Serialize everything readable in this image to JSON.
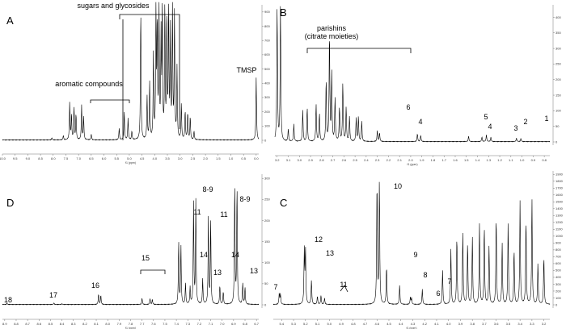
{
  "chart_data": [
    {
      "type": "line",
      "panel": "A",
      "xlabel": "f1 (ppm)",
      "xlim": [
        10.0,
        -0.1
      ],
      "x_ticks": [
        10.0,
        9.5,
        9.0,
        8.5,
        8.0,
        7.5,
        7.0,
        6.5,
        6.0,
        5.5,
        5.0,
        4.5,
        4.0,
        3.5,
        3.0,
        2.5,
        2.0,
        1.5,
        1.0,
        0.5,
        0.0
      ],
      "x_tick_labels": [
        "10.0",
        "9.5",
        "9.0",
        "8.5",
        "8.0",
        "7.5",
        "7.0",
        "6.5",
        "6.0",
        "5.5",
        "5.0",
        "4.5",
        "4.0",
        "3.5",
        "3.0",
        "2.5",
        "2.0",
        "1.5",
        "1.0",
        "0.5",
        "0.0"
      ],
      "ylim": [
        -50,
        950
      ],
      "y_ticks": [
        900,
        800,
        700,
        600,
        500,
        400,
        300,
        200,
        100,
        0
      ],
      "annotations": [
        {
          "text": "aromatic compounds",
          "x": 7.3
        },
        {
          "text": "sugars and glycosides",
          "x": 4.0
        },
        {
          "text": "TMSP",
          "x": 0.0
        }
      ],
      "peaks": [
        {
          "x": 8.05,
          "y": 15
        },
        {
          "x": 7.6,
          "y": 30
        },
        {
          "x": 7.35,
          "y": 260
        },
        {
          "x": 7.28,
          "y": 180
        },
        {
          "x": 7.18,
          "y": 230
        },
        {
          "x": 7.1,
          "y": 180
        },
        {
          "x": 6.88,
          "y": 240
        },
        {
          "x": 6.8,
          "y": 160
        },
        {
          "x": 6.5,
          "y": 40
        },
        {
          "x": 5.4,
          "y": 80
        },
        {
          "x": 5.2,
          "y": 200
        },
        {
          "x": 5.05,
          "y": 150
        },
        {
          "x": 4.9,
          "y": 60
        },
        {
          "x": 4.55,
          "y": 920
        },
        {
          "x": 4.3,
          "y": 300
        },
        {
          "x": 4.2,
          "y": 400
        },
        {
          "x": 4.05,
          "y": 600
        },
        {
          "x": 3.95,
          "y": 920
        },
        {
          "x": 3.9,
          "y": 800
        },
        {
          "x": 3.83,
          "y": 920
        },
        {
          "x": 3.75,
          "y": 700
        },
        {
          "x": 3.7,
          "y": 920
        },
        {
          "x": 3.6,
          "y": 920
        },
        {
          "x": 3.52,
          "y": 860
        },
        {
          "x": 3.45,
          "y": 920
        },
        {
          "x": 3.38,
          "y": 750
        },
        {
          "x": 3.3,
          "y": 920
        },
        {
          "x": 3.22,
          "y": 880
        },
        {
          "x": 3.12,
          "y": 500
        },
        {
          "x": 2.95,
          "y": 250
        },
        {
          "x": 2.8,
          "y": 200
        },
        {
          "x": 2.7,
          "y": 190
        },
        {
          "x": 2.6,
          "y": 160
        },
        {
          "x": 2.45,
          "y": 60
        },
        {
          "x": 0.0,
          "y": 440
        }
      ]
    },
    {
      "type": "line",
      "panel": "B",
      "xlabel": "f1 (ppm)",
      "xlim": [
        3.22,
        0.75
      ],
      "x_ticks": [
        3.2,
        3.1,
        3.0,
        2.9,
        2.8,
        2.7,
        2.6,
        2.5,
        2.4,
        2.3,
        2.2,
        2.1,
        2.0,
        1.9,
        1.8,
        1.7,
        1.6,
        1.5,
        1.4,
        1.3,
        1.2,
        1.1,
        1.0,
        0.9,
        0.8
      ],
      "x_tick_labels": [
        "3.2",
        "3.1",
        "3.0",
        "2.9",
        "2.8",
        "2.7",
        "2.6",
        "2.5",
        "2.4",
        "2.3",
        "2.2",
        "2.1",
        "2.0",
        "1.9",
        "1.8",
        "1.7",
        "1.6",
        "1.5",
        "1.4",
        "1.3",
        "1.2",
        "1.1",
        "1.0",
        "0.9",
        "0.8"
      ],
      "ylim": [
        -30,
        440
      ],
      "y_ticks": [
        400,
        350,
        300,
        250,
        200,
        150,
        100,
        50,
        0
      ],
      "annotations": [
        {
          "text": "parishins",
          "x": 2.72
        },
        {
          "text": "(citrate moieties)",
          "x": 2.72
        },
        {
          "text": "6",
          "x": 2.48
        },
        {
          "text": "4",
          "x": 2.3
        },
        {
          "text": "5",
          "x": 1.93
        },
        {
          "text": "4",
          "x": 1.9
        },
        {
          "text": "3",
          "x": 1.48
        },
        {
          "text": "2",
          "x": 1.3
        },
        {
          "text": "1",
          "x": 1.02
        }
      ],
      "peaks": [
        {
          "x": 3.2,
          "y": 440
        },
        {
          "x": 3.17,
          "y": 440
        },
        {
          "x": 3.1,
          "y": 40
        },
        {
          "x": 3.05,
          "y": 55
        },
        {
          "x": 2.97,
          "y": 100
        },
        {
          "x": 2.93,
          "y": 110
        },
        {
          "x": 2.85,
          "y": 120
        },
        {
          "x": 2.82,
          "y": 90
        },
        {
          "x": 2.76,
          "y": 200
        },
        {
          "x": 2.73,
          "y": 350
        },
        {
          "x": 2.71,
          "y": 220
        },
        {
          "x": 2.68,
          "y": 140
        },
        {
          "x": 2.64,
          "y": 110
        },
        {
          "x": 2.61,
          "y": 190
        },
        {
          "x": 2.58,
          "y": 110
        },
        {
          "x": 2.55,
          "y": 80
        },
        {
          "x": 2.49,
          "y": 75
        },
        {
          "x": 2.47,
          "y": 80
        },
        {
          "x": 2.44,
          "y": 65
        },
        {
          "x": 2.3,
          "y": 35
        },
        {
          "x": 2.28,
          "y": 28
        },
        {
          "x": 1.94,
          "y": 25
        },
        {
          "x": 1.91,
          "y": 20
        },
        {
          "x": 1.48,
          "y": 18
        },
        {
          "x": 1.36,
          "y": 15
        },
        {
          "x": 1.32,
          "y": 22
        },
        {
          "x": 1.28,
          "y": 14
        },
        {
          "x": 1.05,
          "y": 12
        },
        {
          "x": 1.01,
          "y": 10
        }
      ]
    },
    {
      "type": "line",
      "panel": "D",
      "xlabel": "f1 (ppm)",
      "xlim": [
        8.92,
        6.68
      ],
      "x_ticks": [
        8.9,
        8.8,
        8.7,
        8.6,
        8.5,
        8.4,
        8.3,
        8.2,
        8.1,
        8.0,
        7.9,
        7.8,
        7.7,
        7.6,
        7.5,
        7.4,
        7.3,
        7.2,
        7.1,
        7.0,
        6.9,
        6.8,
        6.7
      ],
      "x_tick_labels": [
        "8.9",
        "8.8",
        "8.7",
        "8.6",
        "8.5",
        "8.4",
        "8.3",
        "8.2",
        "8.1",
        "8.0",
        "7.9",
        "7.8",
        "7.7",
        "7.6",
        "7.5",
        "7.4",
        "7.3",
        "7.2",
        "7.1",
        "7.0",
        "6.9",
        "6.8",
        "6.7"
      ],
      "ylim": [
        -10,
        310
      ],
      "y_ticks": [
        300,
        250,
        200,
        150,
        100,
        50,
        0
      ],
      "annotations": [
        {
          "text": "18",
          "x": 8.88
        },
        {
          "text": "17",
          "x": 8.47
        },
        {
          "text": "16",
          "x": 8.07
        },
        {
          "text": "15",
          "x": 7.66
        },
        {
          "text": "11",
          "x": 7.37
        },
        {
          "text": "14",
          "x": 7.3
        },
        {
          "text": "8-9",
          "x": 7.24
        },
        {
          "text": "13",
          "x": 7.17
        },
        {
          "text": "11",
          "x": 7.12
        },
        {
          "text": "14",
          "x": 7.03
        },
        {
          "text": "8-9",
          "x": 6.88
        },
        {
          "text": "13",
          "x": 6.83
        }
      ],
      "peaks": [
        {
          "x": 8.88,
          "y": 3
        },
        {
          "x": 8.47,
          "y": 4
        },
        {
          "x": 8.4,
          "y": 2
        },
        {
          "x": 8.08,
          "y": 25
        },
        {
          "x": 8.06,
          "y": 22
        },
        {
          "x": 7.7,
          "y": 15
        },
        {
          "x": 7.63,
          "y": 14
        },
        {
          "x": 7.61,
          "y": 12
        },
        {
          "x": 7.38,
          "y": 150
        },
        {
          "x": 7.36,
          "y": 140
        },
        {
          "x": 7.32,
          "y": 50
        },
        {
          "x": 7.28,
          "y": 40
        },
        {
          "x": 7.25,
          "y": 240
        },
        {
          "x": 7.23,
          "y": 245
        },
        {
          "x": 7.17,
          "y": 60
        },
        {
          "x": 7.12,
          "y": 210
        },
        {
          "x": 7.1,
          "y": 200
        },
        {
          "x": 7.02,
          "y": 45
        },
        {
          "x": 6.99,
          "y": 30
        },
        {
          "x": 6.89,
          "y": 290
        },
        {
          "x": 6.87,
          "y": 280
        },
        {
          "x": 6.82,
          "y": 50
        },
        {
          "x": 6.8,
          "y": 40
        }
      ]
    },
    {
      "type": "line",
      "panel": "C",
      "xlabel": "f1 (ppm)",
      "xlim": [
        5.47,
        3.15
      ],
      "x_ticks": [
        5.4,
        5.3,
        5.2,
        5.1,
        5.0,
        4.9,
        4.8,
        4.7,
        4.6,
        4.5,
        4.4,
        4.3,
        4.2,
        4.1,
        4.0,
        3.9,
        3.8,
        3.7,
        3.6,
        3.5,
        3.4,
        3.3,
        3.2
      ],
      "x_tick_labels": [
        "5.4",
        "5.3",
        "5.2",
        "5.1",
        "5.0",
        "4.9",
        "4.8",
        "4.7",
        "4.6",
        "4.5",
        "4.4",
        "4.3",
        "4.2",
        "4.1",
        "4.0",
        "3.9",
        "3.8",
        "3.7",
        "3.6",
        "3.5",
        "3.4",
        "3.3",
        "3.2"
      ],
      "ylim": [
        -100,
        1950
      ],
      "y_ticks": [
        1900,
        1800,
        1700,
        1600,
        1500,
        1400,
        1300,
        1200,
        1100,
        1000,
        900,
        800,
        700,
        600,
        500,
        400,
        300,
        200,
        100,
        0
      ],
      "annotations": [
        {
          "text": "7",
          "x": 5.42
        },
        {
          "text": "12",
          "x": 5.2
        },
        {
          "text": "13",
          "x": 5.16
        },
        {
          "text": "11",
          "x": 5.07
        },
        {
          "text": "10",
          "x": 4.59
        },
        {
          "text": "9",
          "x": 4.52
        },
        {
          "text": "8",
          "x": 4.41
        },
        {
          "text": "6",
          "x": 4.32
        },
        {
          "text": "7",
          "x": 4.22
        }
      ],
      "peaks": [
        {
          "x": 5.42,
          "y": 160
        },
        {
          "x": 5.41,
          "y": 150
        },
        {
          "x": 5.21,
          "y": 780
        },
        {
          "x": 5.2,
          "y": 800
        },
        {
          "x": 5.15,
          "y": 350
        },
        {
          "x": 5.1,
          "y": 120
        },
        {
          "x": 5.07,
          "y": 130
        },
        {
          "x": 5.04,
          "y": 90
        },
        {
          "x": 4.6,
          "y": 1800
        },
        {
          "x": 4.58,
          "y": 1800
        },
        {
          "x": 4.52,
          "y": 560
        },
        {
          "x": 4.41,
          "y": 280
        },
        {
          "x": 4.32,
          "y": 100
        },
        {
          "x": 4.31,
          "y": 90
        },
        {
          "x": 4.22,
          "y": 220
        },
        {
          "x": 4.05,
          "y": 500
        },
        {
          "x": 3.98,
          "y": 800
        },
        {
          "x": 3.93,
          "y": 1000
        },
        {
          "x": 3.88,
          "y": 1050
        },
        {
          "x": 3.84,
          "y": 900
        },
        {
          "x": 3.8,
          "y": 980
        },
        {
          "x": 3.74,
          "y": 1180
        },
        {
          "x": 3.7,
          "y": 1150
        },
        {
          "x": 3.66,
          "y": 850
        },
        {
          "x": 3.6,
          "y": 1300
        },
        {
          "x": 3.55,
          "y": 900
        },
        {
          "x": 3.5,
          "y": 1200
        },
        {
          "x": 3.45,
          "y": 800
        },
        {
          "x": 3.4,
          "y": 1500
        },
        {
          "x": 3.35,
          "y": 1250
        },
        {
          "x": 3.3,
          "y": 1550
        },
        {
          "x": 3.25,
          "y": 600
        },
        {
          "x": 3.2,
          "y": 700
        }
      ]
    }
  ]
}
